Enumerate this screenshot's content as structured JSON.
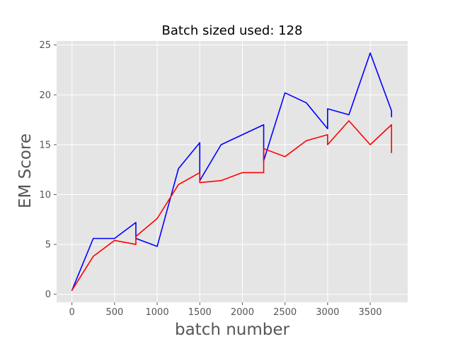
{
  "chart_data": {
    "type": "line",
    "title": "Batch sized used: 128",
    "xlabel": "batch number",
    "ylabel": "EM Score",
    "xlim": [
      -180,
      3940
    ],
    "ylim": [
      -0.8,
      25.4
    ],
    "xticks": [
      0,
      500,
      1000,
      1500,
      2000,
      2500,
      3000,
      3500
    ],
    "yticks": [
      0,
      5,
      10,
      15,
      20,
      25
    ],
    "grid": true,
    "background": "#e5e5e5",
    "grid_color": "#ffffff",
    "series": [
      {
        "color": "#0000ff",
        "x": [
          0,
          250,
          500,
          750,
          750,
          1000,
          1250,
          1500,
          1500,
          1750,
          2000,
          2250,
          2250,
          2500,
          2750,
          3000,
          3000,
          3250,
          3500,
          3750,
          3750
        ],
        "y": [
          0.4,
          5.6,
          5.6,
          7.2,
          5.6,
          4.8,
          12.6,
          15.2,
          11.4,
          15.0,
          16.0,
          17.0,
          13.4,
          20.2,
          19.2,
          16.6,
          18.6,
          18.0,
          24.2,
          18.4,
          17.8
        ]
      },
      {
        "color": "#ff0000",
        "x": [
          0,
          250,
          500,
          750,
          750,
          1000,
          1250,
          1500,
          1500,
          1750,
          2000,
          2250,
          2250,
          2500,
          2750,
          3000,
          3000,
          3250,
          3500,
          3750,
          3750
        ],
        "y": [
          0.4,
          3.8,
          5.4,
          5.0,
          5.8,
          7.6,
          11.0,
          12.2,
          11.2,
          11.4,
          12.2,
          12.2,
          14.6,
          13.8,
          15.4,
          16.0,
          15.0,
          17.4,
          15.0,
          17.0,
          14.2
        ]
      }
    ]
  }
}
